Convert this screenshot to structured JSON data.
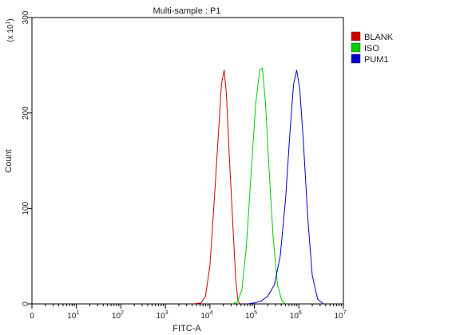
{
  "chart_data": {
    "type": "line",
    "title": "Multi-sample : P1",
    "xlabel": "FITC-A",
    "ylabel": "Count",
    "y_multiplier_base": "(x 10",
    "y_multiplier_exp": "1",
    "y_multiplier_close": ")",
    "x_scale": "log",
    "xlim": [
      0,
      7
    ],
    "ylim": [
      0,
      300
    ],
    "x_tick_labels": [
      {
        "base": "0",
        "exp": ""
      },
      {
        "base": "10",
        "exp": "1"
      },
      {
        "base": "10",
        "exp": "2"
      },
      {
        "base": "10",
        "exp": "3"
      },
      {
        "base": "10",
        "exp": "4"
      },
      {
        "base": "10",
        "exp": "5"
      },
      {
        "base": "10",
        "exp": "6"
      },
      {
        "base": "10",
        "exp": "7"
      }
    ],
    "y_tick_labels": [
      "0",
      "100",
      "200",
      "300"
    ],
    "y_ticks": [
      0,
      100,
      200,
      300
    ],
    "grid": false,
    "legend_position": "top-right",
    "series": [
      {
        "name": "BLANK",
        "color": "#cc0000",
        "points": [
          [
            3.62,
            0
          ],
          [
            3.8,
            1
          ],
          [
            3.9,
            8
          ],
          [
            4.0,
            40
          ],
          [
            4.1,
            110
          ],
          [
            4.2,
            185
          ],
          [
            4.26,
            230
          ],
          [
            4.32,
            245
          ],
          [
            4.37,
            220
          ],
          [
            4.44,
            150
          ],
          [
            4.52,
            80
          ],
          [
            4.58,
            25
          ],
          [
            4.63,
            3
          ],
          [
            4.68,
            0
          ]
        ]
      },
      {
        "name": "ISO",
        "color": "#00cc00",
        "points": [
          [
            4.5,
            0
          ],
          [
            4.62,
            2
          ],
          [
            4.72,
            15
          ],
          [
            4.82,
            60
          ],
          [
            4.93,
            140
          ],
          [
            5.03,
            210
          ],
          [
            5.12,
            245
          ],
          [
            5.18,
            247
          ],
          [
            5.25,
            210
          ],
          [
            5.33,
            140
          ],
          [
            5.42,
            70
          ],
          [
            5.52,
            20
          ],
          [
            5.62,
            3
          ],
          [
            5.7,
            0
          ]
        ]
      },
      {
        "name": "PUM1",
        "color": "#0000cc",
        "points": [
          [
            4.85,
            0
          ],
          [
            5.0,
            1
          ],
          [
            5.15,
            3
          ],
          [
            5.3,
            8
          ],
          [
            5.45,
            20
          ],
          [
            5.58,
            50
          ],
          [
            5.7,
            110
          ],
          [
            5.8,
            180
          ],
          [
            5.88,
            230
          ],
          [
            5.95,
            245
          ],
          [
            6.02,
            225
          ],
          [
            6.1,
            170
          ],
          [
            6.2,
            90
          ],
          [
            6.3,
            30
          ],
          [
            6.42,
            5
          ],
          [
            6.55,
            0
          ]
        ]
      }
    ]
  }
}
